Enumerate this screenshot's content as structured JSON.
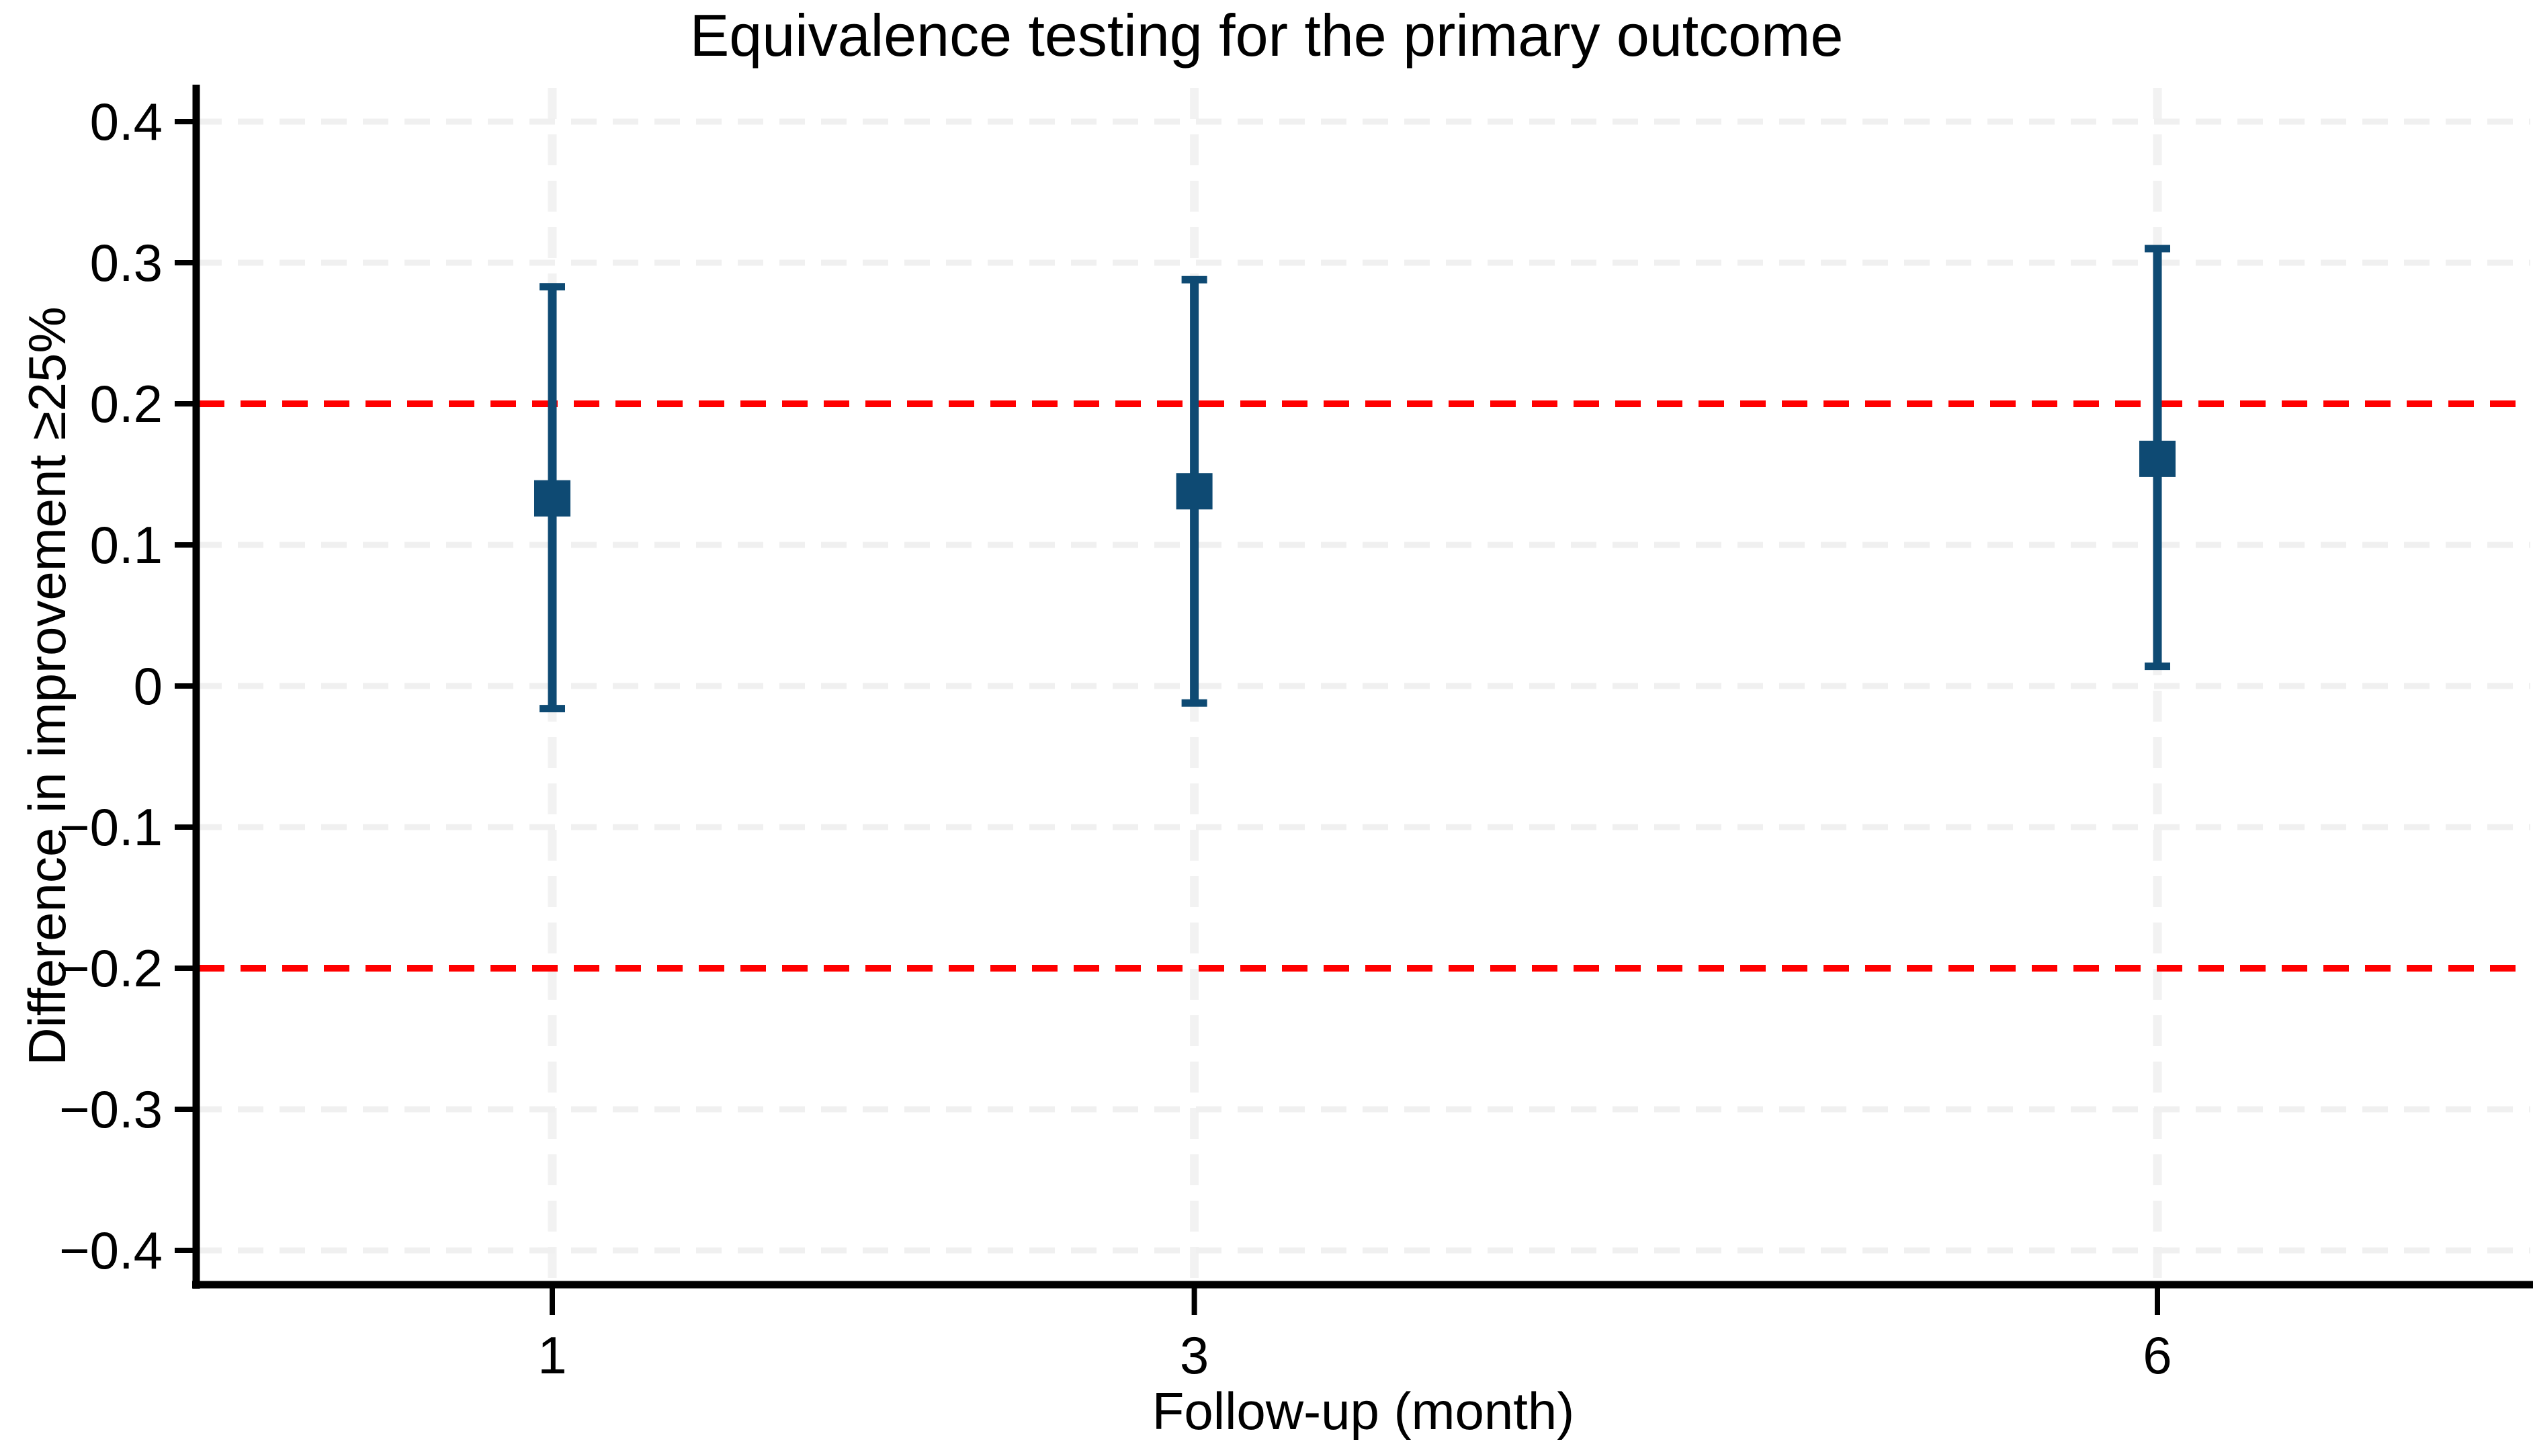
{
  "chart_data": {
    "type": "scatter",
    "title": "Equivalence testing for the primary outcome",
    "xlabel": "Follow-up (month)",
    "ylabel": "Difference in improvement ≥25%",
    "x": [
      1,
      3,
      6
    ],
    "x_tick_labels": [
      "1",
      "3",
      "6"
    ],
    "estimates": [
      0.133,
      0.138,
      0.161
    ],
    "ci_low": [
      -0.016,
      -0.012,
      0.014
    ],
    "ci_high": [
      0.283,
      0.288,
      0.31
    ],
    "equivalence_margins": [
      0.2,
      -0.2
    ],
    "yticks": [
      0.4,
      0.3,
      0.2,
      0.1,
      0,
      -0.1,
      -0.2,
      -0.3,
      -0.4
    ],
    "ytick_labels": [
      "0.4",
      "0.3",
      "0.2",
      "0.1",
      "0",
      "−0.1",
      "−0.2",
      "−0.3",
      "−0.4"
    ],
    "ylim": [
      -0.42,
      0.42
    ],
    "xlim": [
      -0.11,
      7.17
    ],
    "grid": true,
    "legend": false,
    "marker": "square",
    "line_styles": {
      "margin_line": "dashed",
      "gridline": "dashed"
    },
    "colors": {
      "point": "#0e4a73",
      "margin_line": "#ff0000",
      "gridline": "#f0f0f0",
      "v_gridline": "#f2f2f2",
      "axis": "#000000",
      "text": "#000000",
      "background": "#ffffff"
    }
  }
}
